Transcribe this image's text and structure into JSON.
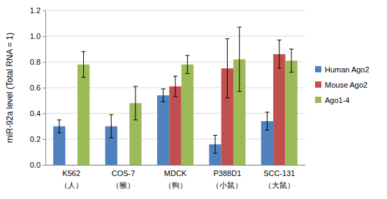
{
  "chart_data": {
    "type": "bar",
    "y_label": "miR-92a level (Total RNA = 1)",
    "categories": [
      "K562\n（人）",
      "COS-7\n（猴）",
      "MDCK\n（狗）",
      "P388D1\n（小鼠）",
      "SCC-131\n（大鼠）"
    ],
    "series": [
      {
        "name": "Human Ago2",
        "color": "#4f81bd",
        "values": [
          0.3,
          0.3,
          0.54,
          0.16,
          0.34
        ],
        "errors": [
          0.05,
          0.09,
          0.05,
          0.07,
          0.07
        ]
      },
      {
        "name": "Mouse Ago2",
        "color": "#c0504d",
        "values": [
          null,
          null,
          0.61,
          0.75,
          0.86
        ],
        "errors": [
          null,
          null,
          0.08,
          0.23,
          0.11
        ]
      },
      {
        "name": "Ago1-4",
        "color": "#9bbb59",
        "values": [
          0.78,
          0.48,
          0.78,
          0.82,
          0.81
        ],
        "errors": [
          0.1,
          0.13,
          0.07,
          0.25,
          0.09
        ]
      }
    ],
    "ylim": [
      0,
      1.2
    ],
    "yticks": [
      {
        "value": 0,
        "label": "0.0"
      },
      {
        "value": 0.2,
        "label": "0.2"
      },
      {
        "value": 0.4,
        "label": "0.4"
      },
      {
        "value": 0.6,
        "label": "0.6"
      },
      {
        "value": 0.8,
        "label": "0.8"
      },
      {
        "value": 1,
        "label": "1.0"
      },
      {
        "value": 1.2,
        "label": "1.2"
      }
    ],
    "grid": true,
    "legend": "right"
  }
}
